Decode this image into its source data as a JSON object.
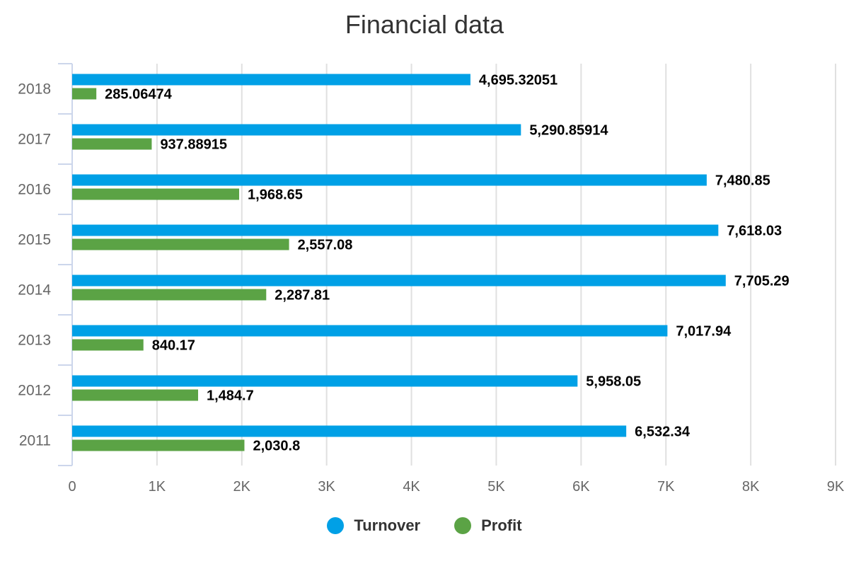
{
  "chart_data": {
    "type": "bar",
    "orientation": "horizontal",
    "title": "Financial data",
    "categories": [
      "2018",
      "2017",
      "2016",
      "2015",
      "2014",
      "2013",
      "2012",
      "2011"
    ],
    "series": [
      {
        "name": "Turnover",
        "color": "#00a0e6",
        "values": [
          4695.32051,
          5290.85914,
          7480.85,
          7618.03,
          7705.29,
          7017.94,
          5958.05,
          6532.34
        ],
        "labels": [
          "4,695.32051",
          "5,290.85914",
          "7,480.85",
          "7,618.03",
          "7,705.29",
          "7,017.94",
          "5,958.05",
          "6,532.34"
        ]
      },
      {
        "name": "Profit",
        "color": "#5ba345",
        "values": [
          285.06474,
          937.88915,
          1968.65,
          2557.08,
          2287.81,
          840.17,
          1484.7,
          2030.8
        ],
        "labels": [
          "285.06474",
          "937.88915",
          "1,968.65",
          "2,557.08",
          "2,287.81",
          "840.17",
          "1,484.7",
          "2,030.8"
        ]
      }
    ],
    "xlim": [
      0,
      9000
    ],
    "x_ticks": [
      0,
      1000,
      2000,
      3000,
      4000,
      5000,
      6000,
      7000,
      8000,
      9000
    ],
    "x_tick_labels": [
      "0",
      "1K",
      "2K",
      "3K",
      "4K",
      "5K",
      "6K",
      "7K",
      "8K",
      "9K"
    ],
    "grid": true,
    "legend_position": "bottom-center"
  }
}
